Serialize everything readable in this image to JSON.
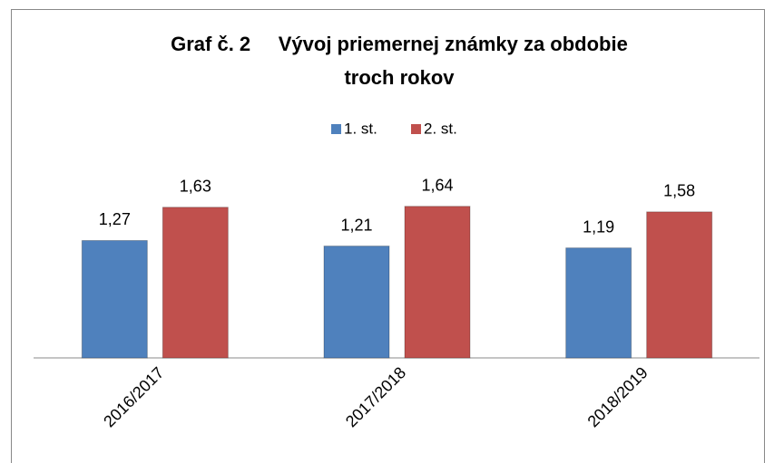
{
  "chart_data": {
    "type": "bar",
    "title": [
      "Graf č. 2     Vývoj priemernej známky za obdobie",
      "troch rokov"
    ],
    "categories": [
      "2016/2017",
      "2017/2018",
      "2018/2019"
    ],
    "series": [
      {
        "name": "1. st.",
        "color": "#4f81bd",
        "values": [
          1.27,
          1.21,
          1.19
        ],
        "value_labels": [
          "1,27",
          "1,21",
          "1,19"
        ]
      },
      {
        "name": "2. st.",
        "color": "#c0504d",
        "values": [
          1.63,
          1.64,
          1.58
        ],
        "value_labels": [
          "1,63",
          "1,64",
          "1,58"
        ]
      }
    ],
    "ylim": [
      0,
      3.5
    ]
  }
}
